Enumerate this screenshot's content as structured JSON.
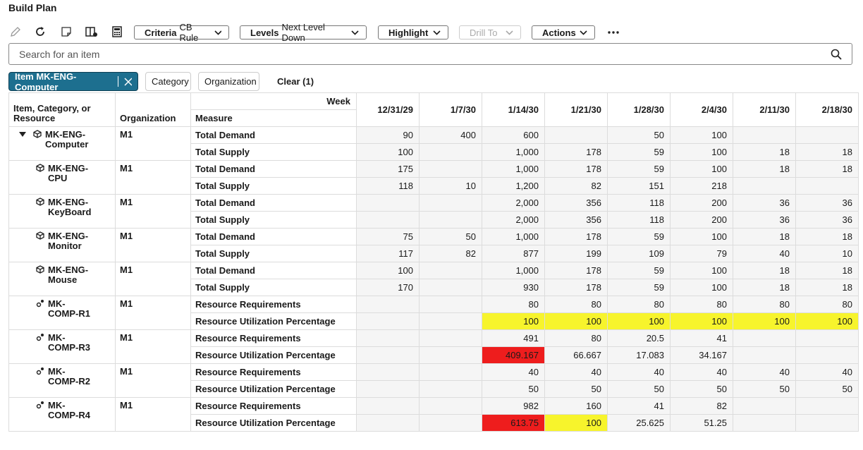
{
  "header": {
    "title": "Build Plan"
  },
  "toolbar": {
    "buttons": [
      {
        "label": "Criteria",
        "value": "CB Rule"
      },
      {
        "label": "Levels",
        "value": "Next Level Down"
      },
      {
        "label": "Highlight"
      },
      {
        "label": "Drill To"
      },
      {
        "label": "Actions"
      }
    ]
  },
  "search": {
    "placeholder": "Search for an item"
  },
  "filters": {
    "chips": [
      "Item MK-ENG-Computer",
      "Category",
      "Organization"
    ],
    "clear": "Clear (1)"
  },
  "table": {
    "week_label": "Week",
    "columns": [
      "Item, Category, or Resource",
      "Organization",
      "Measure"
    ],
    "weeks": [
      "12/31/29",
      "1/7/30",
      "1/14/30",
      "1/21/30",
      "1/28/30",
      "2/4/30",
      "2/11/30",
      "2/18/30"
    ],
    "groups": [
      {
        "item": "MK-ENG-Computer",
        "org": "M1",
        "rows": [
          {
            "measure": "Total Demand",
            "values": [
              90,
              400,
              600,
              null,
              50,
              100,
              null,
              null
            ]
          },
          {
            "measure": "Total Supply",
            "values": [
              100,
              null,
              "1,000",
              178,
              59,
              100,
              18,
              18
            ]
          }
        ]
      },
      {
        "item": "MK-ENG-CPU",
        "org": "M1",
        "rows": [
          {
            "measure": "Total Demand",
            "values": [
              175,
              null,
              "1,000",
              178,
              59,
              100,
              18,
              18
            ]
          },
          {
            "measure": "Total Supply",
            "values": [
              118,
              10,
              "1,200",
              82,
              151,
              218,
              null,
              null
            ]
          }
        ]
      },
      {
        "item": "MK-ENG-KeyBoard",
        "org": "M1",
        "rows": [
          {
            "measure": "Total Demand",
            "values": [
              null,
              null,
              "2,000",
              356,
              118,
              200,
              36,
              36
            ]
          },
          {
            "measure": "Total Supply",
            "values": [
              null,
              null,
              "2,000",
              356,
              118,
              200,
              36,
              36
            ]
          }
        ]
      },
      {
        "item": "MK-ENG-Monitor",
        "org": "M1",
        "rows": [
          {
            "measure": "Total Demand",
            "values": [
              75,
              50,
              "1,000",
              178,
              59,
              100,
              18,
              18
            ]
          },
          {
            "measure": "Total Supply",
            "values": [
              117,
              82,
              877,
              199,
              109,
              79,
              40,
              10
            ]
          }
        ]
      },
      {
        "item": "MK-ENG-Mouse",
        "org": "M1",
        "rows": [
          {
            "measure": "Total Demand",
            "values": [
              100,
              null,
              "1,000",
              178,
              59,
              100,
              18,
              18
            ]
          },
          {
            "measure": "Total Supply",
            "values": [
              170,
              null,
              930,
              178,
              59,
              100,
              18,
              18
            ]
          }
        ]
      },
      {
        "item": "MK-COMP-R1",
        "org": "M1",
        "rows": [
          {
            "measure": "Resource Requirements",
            "values": [
              null,
              null,
              80,
              80,
              80,
              80,
              80,
              80
            ]
          },
          {
            "measure": "Resource Utilization Percentage",
            "values": [
              null,
              null,
              100,
              100,
              100,
              100,
              100,
              100
            ],
            "colors": [
              null,
              null,
              "#f7f42c",
              "#f7f42c",
              "#f7f42c",
              "#f7f42c",
              "#f7f42c",
              "#f7f42c"
            ]
          }
        ]
      },
      {
        "item": "MK-COMP-R3",
        "org": "M1",
        "rows": [
          {
            "measure": "Resource Requirements",
            "values": [
              null,
              null,
              491,
              80,
              20.5,
              41,
              null,
              null
            ]
          },
          {
            "measure": "Resource Utilization Percentage",
            "values": [
              null,
              null,
              409.167,
              66.667,
              17.083,
              34.167,
              null,
              null
            ],
            "colors": [
              null,
              null,
              "#ee1d1d",
              null,
              null,
              null,
              null,
              null
            ]
          }
        ]
      },
      {
        "item": "MK-COMP-R2",
        "org": "M1",
        "rows": [
          {
            "measure": "Resource Requirements",
            "values": [
              null,
              null,
              40,
              40,
              40,
              40,
              40,
              40
            ]
          },
          {
            "measure": "Resource Utilization Percentage",
            "values": [
              null,
              null,
              50,
              50,
              50,
              50,
              50,
              50
            ]
          }
        ]
      },
      {
        "item": "MK-COMP-R4",
        "org": "M1",
        "rows": [
          {
            "measure": "Resource Requirements",
            "values": [
              null,
              null,
              982,
              160,
              41,
              82,
              null,
              null
            ]
          },
          {
            "measure": "Resource Utilization Percentage",
            "values": [
              null,
              null,
              613.75,
              100,
              25.625,
              51.25,
              null,
              null
            ],
            "colors": [
              null,
              null,
              "#ee1d1d",
              "#f7f42c",
              null,
              null,
              null,
              null
            ]
          }
        ]
      }
    ]
  }
}
